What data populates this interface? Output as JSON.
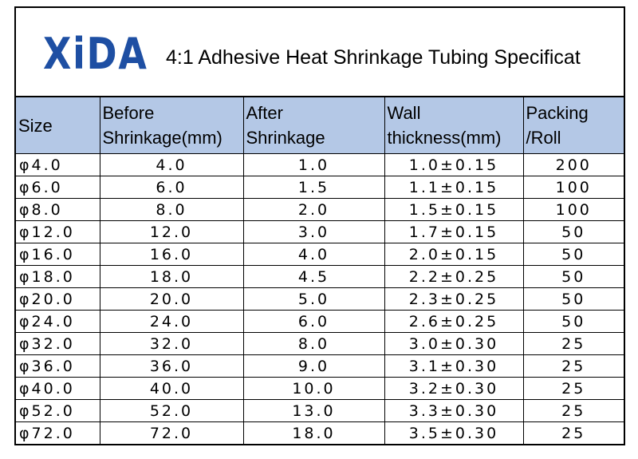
{
  "header": {
    "logo": "XiDA",
    "title": "4:1 Adhesive Heat Shrinkage Tubing Specificat"
  },
  "table": {
    "columns": [
      [
        "Size"
      ],
      [
        "Before",
        "Shrinkage(mm)"
      ],
      [
        "After",
        "Shrinkage"
      ],
      [
        "Wall",
        "thickness(mm)"
      ],
      [
        "Packing",
        "/Roll"
      ]
    ],
    "rows": [
      [
        "φ4.0",
        "4.0",
        "1.0",
        "1.0±0.15",
        "200"
      ],
      [
        "φ6.0",
        "6.0",
        "1.5",
        "1.1±0.15",
        "100"
      ],
      [
        "φ8.0",
        "8.0",
        "2.0",
        "1.5±0.15",
        "100"
      ],
      [
        "φ12.0",
        "12.0",
        "3.0",
        "1.7±0.15",
        "50"
      ],
      [
        "φ16.0",
        "16.0",
        "4.0",
        "2.0±0.15",
        "50"
      ],
      [
        "φ18.0",
        "18.0",
        "4.5",
        "2.2±0.25",
        "50"
      ],
      [
        "φ20.0",
        "20.0",
        "5.0",
        "2.3±0.25",
        "50"
      ],
      [
        "φ24.0",
        "24.0",
        "6.0",
        "2.6±0.25",
        "50"
      ],
      [
        "φ32.0",
        "32.0",
        "8.0",
        "3.0±0.30",
        "25"
      ],
      [
        "φ36.0",
        "36.0",
        "9.0",
        "3.1±0.30",
        "25"
      ],
      [
        "φ40.0",
        "40.0",
        "10.0",
        "3.2±0.30",
        "25"
      ],
      [
        "φ52.0",
        "52.0",
        "13.0",
        "3.3±0.30",
        "25"
      ],
      [
        "φ72.0",
        "72.0",
        "18.0",
        "3.5±0.30",
        "25"
      ]
    ]
  }
}
